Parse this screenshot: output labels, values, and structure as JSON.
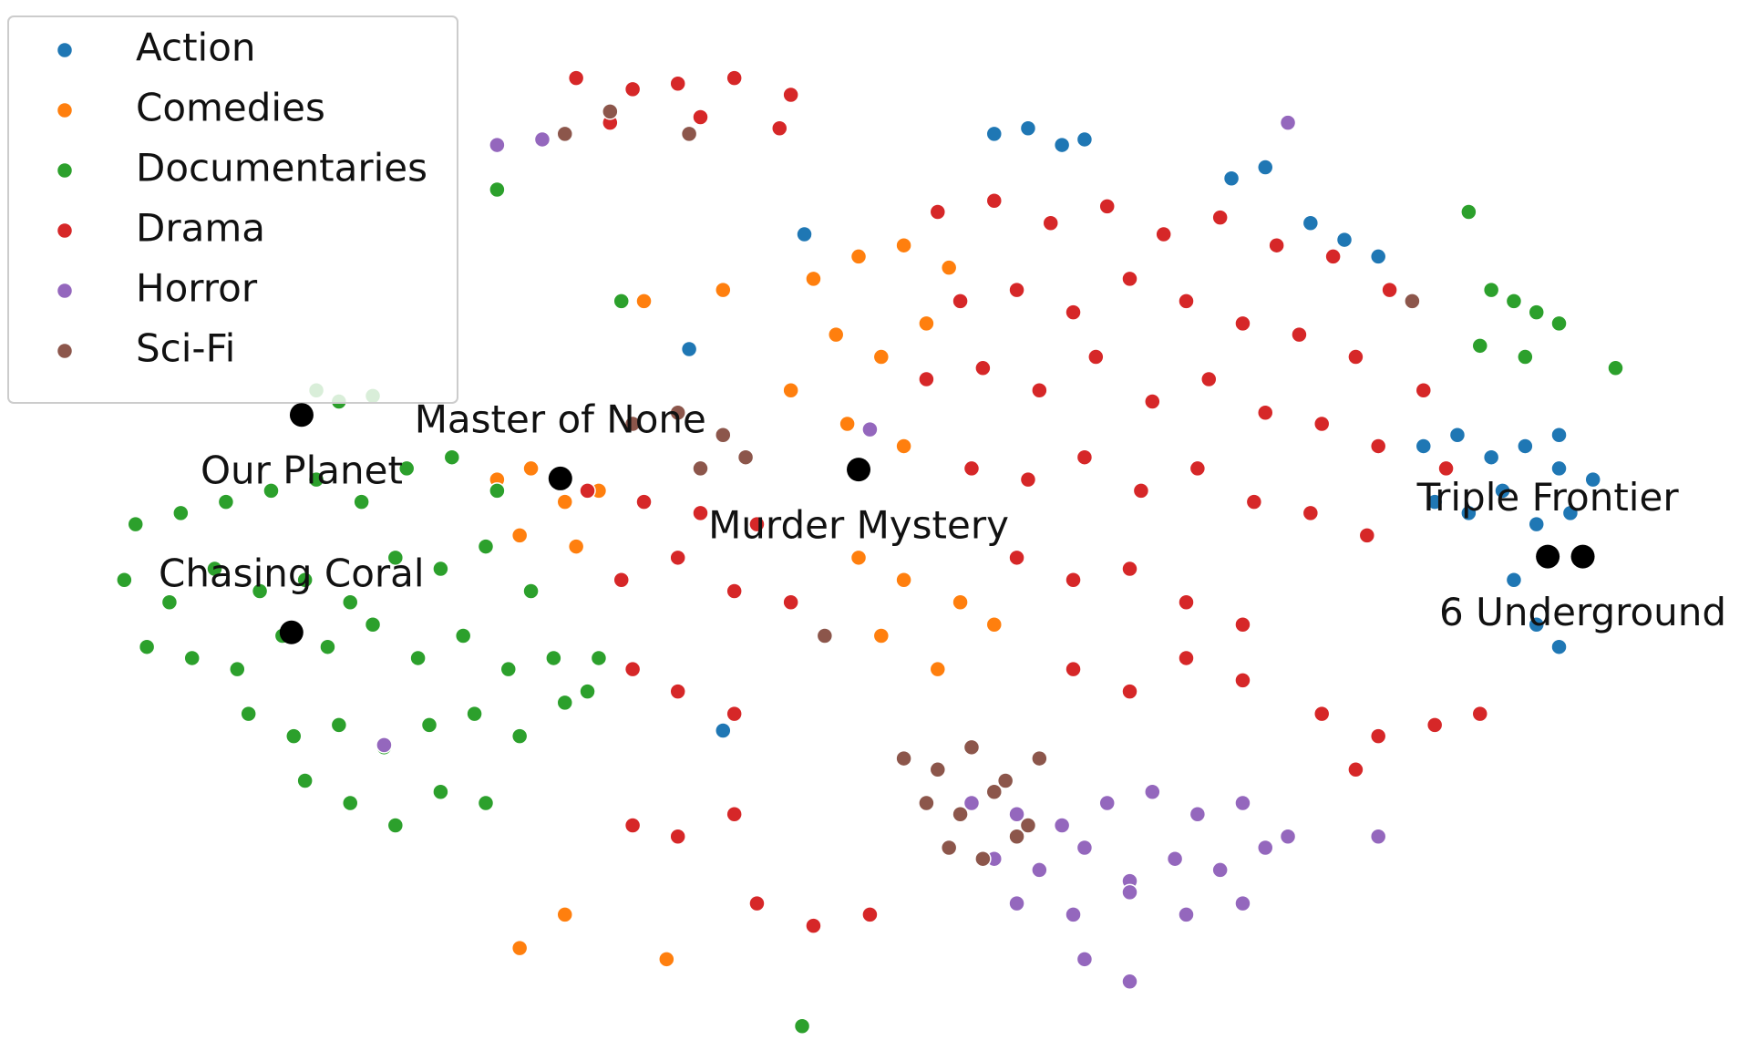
{
  "chart_data": {
    "type": "scatter",
    "xlim": [
      0,
      1549
    ],
    "ylim": [
      948,
      0
    ],
    "legend": "upper left",
    "highlight_color": "#000000",
    "series": [
      {
        "name": "Action",
        "color": "#1f77b4",
        "x": [
          1260,
          1290,
          1320,
          1350,
          1380,
          1410,
          1270,
          1300,
          1330,
          1360,
          1390,
          1340,
          1360,
          1380,
          880,
          910,
          940,
          960,
          1090,
          1120,
          1160,
          1190,
          1220,
          610,
          640,
          712,
          1380
        ],
        "values": [
          400,
          390,
          410,
          400,
          420,
          430,
          450,
          460,
          440,
          470,
          460,
          520,
          560,
          580,
          120,
          115,
          130,
          125,
          160,
          150,
          200,
          215,
          230,
          313,
          655,
          210,
          390
        ]
      },
      {
        "name": "Comedies",
        "color": "#ff7f0e",
        "x": [
          720,
          760,
          800,
          840,
          740,
          780,
          820,
          700,
          750,
          800,
          440,
          470,
          500,
          530,
          460,
          510,
          760,
          800,
          850,
          880,
          780,
          830,
          570,
          640,
          590,
          500,
          460
        ],
        "values": [
          250,
          230,
          220,
          240,
          300,
          320,
          290,
          350,
          380,
          400,
          430,
          420,
          450,
          440,
          480,
          490,
          500,
          520,
          540,
          560,
          570,
          600,
          270,
          260,
          860,
          820,
          850
        ]
      },
      {
        "name": "Documentaries",
        "color": "#2ca02c",
        "x": [
          120,
          160,
          200,
          240,
          280,
          320,
          360,
          400,
          440,
          110,
          150,
          190,
          230,
          270,
          310,
          350,
          390,
          430,
          470,
          130,
          170,
          210,
          250,
          290,
          330,
          370,
          410,
          450,
          490,
          520,
          220,
          260,
          300,
          340,
          380,
          420,
          460,
          500,
          270,
          310,
          350,
          390,
          430,
          280,
          300,
          330,
          1300,
          1320,
          1340,
          1360,
          1380,
          1310,
          1350,
          1430,
          440,
          550,
          530,
          710
        ],
        "values": [
          470,
          460,
          450,
          440,
          430,
          450,
          420,
          410,
          440,
          520,
          540,
          510,
          530,
          520,
          540,
          500,
          510,
          490,
          530,
          580,
          590,
          600,
          570,
          580,
          560,
          590,
          570,
          600,
          590,
          620,
          640,
          660,
          650,
          670,
          650,
          640,
          660,
          630,
          700,
          720,
          740,
          710,
          720,
          350,
          360,
          355,
          190,
          260,
          270,
          280,
          290,
          310,
          320,
          330,
          170,
          270,
          590,
          920
        ]
      },
      {
        "name": "Drama",
        "color": "#d62728",
        "x": [
          510,
          560,
          600,
          650,
          700,
          540,
          620,
          690,
          830,
          880,
          930,
          980,
          1030,
          1080,
          1130,
          1180,
          1230,
          850,
          900,
          950,
          1000,
          1050,
          1100,
          1150,
          1200,
          1260,
          820,
          870,
          920,
          970,
          1020,
          1070,
          1120,
          1170,
          1220,
          1280,
          860,
          910,
          960,
          1010,
          1060,
          1110,
          1160,
          1210,
          900,
          950,
          1000,
          1050,
          1100,
          520,
          570,
          620,
          670,
          550,
          600,
          650,
          700,
          560,
          600,
          650,
          560,
          600,
          650,
          670,
          720,
          770,
          1170,
          1220,
          1270,
          1310,
          1200,
          950,
          1000,
          1050,
          1100
        ],
        "values": [
          70,
          80,
          75,
          70,
          85,
          110,
          105,
          115,
          190,
          180,
          200,
          185,
          210,
          195,
          220,
          230,
          260,
          270,
          260,
          280,
          250,
          270,
          290,
          300,
          320,
          350,
          340,
          330,
          350,
          320,
          360,
          340,
          370,
          380,
          400,
          420,
          420,
          430,
          410,
          440,
          420,
          450,
          460,
          480,
          500,
          520,
          510,
          540,
          560,
          440,
          450,
          460,
          470,
          520,
          500,
          530,
          540,
          600,
          620,
          640,
          740,
          750,
          730,
          810,
          830,
          820,
          640,
          660,
          650,
          640,
          690,
          600,
          620,
          590,
          610
        ]
      },
      {
        "name": "Horror",
        "color": "#9467bd",
        "x": [
          860,
          900,
          940,
          980,
          1020,
          1060,
          1100,
          1140,
          880,
          920,
          960,
          1000,
          1040,
          1080,
          1120,
          900,
          950,
          1000,
          1050,
          1100,
          960,
          1000,
          440,
          480,
          1140,
          1220,
          770,
          340
        ],
        "values": [
          720,
          730,
          740,
          720,
          710,
          730,
          720,
          750,
          770,
          780,
          760,
          790,
          770,
          780,
          760,
          810,
          820,
          800,
          820,
          810,
          860,
          880,
          130,
          125,
          110,
          750,
          385,
          668
        ]
      },
      {
        "name": "Sci-Fi",
        "color": "#8c564b",
        "x": [
          800,
          830,
          860,
          890,
          920,
          820,
          850,
          880,
          910,
          840,
          870,
          900,
          560,
          600,
          640,
          620,
          660,
          500,
          540,
          610,
          730,
          1250
        ],
        "values": [
          680,
          690,
          670,
          700,
          680,
          720,
          730,
          710,
          740,
          760,
          770,
          750,
          380,
          370,
          390,
          420,
          410,
          120,
          100,
          120,
          570,
          270
        ]
      }
    ],
    "highlights": [
      {
        "label": "Our Planet",
        "x": 267,
        "y": 372,
        "label_position": "below"
      },
      {
        "label": "Master of None",
        "x": 496,
        "y": 429,
        "label_position": "above"
      },
      {
        "label": "Murder Mystery",
        "x": 760,
        "y": 421,
        "label_position": "below"
      },
      {
        "label": "Chasing Coral",
        "x": 258,
        "y": 567,
        "label_position": "above"
      },
      {
        "label": "Triple Frontier",
        "x": 1370,
        "y": 499,
        "label_position": "above"
      },
      {
        "label": "6 Underground",
        "x": 1401,
        "y": 499,
        "label_position": "below"
      }
    ]
  }
}
